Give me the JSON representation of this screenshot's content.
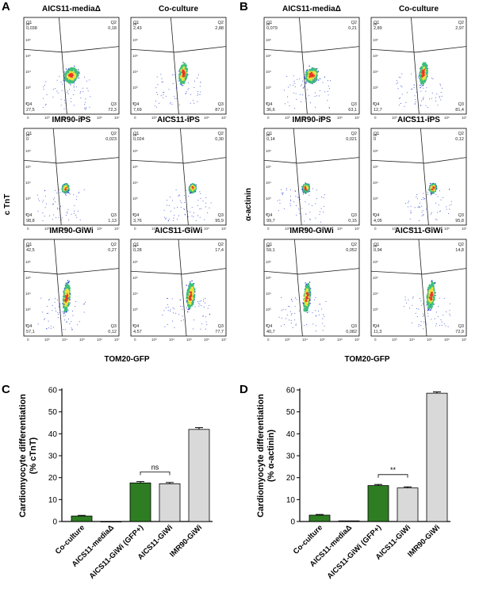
{
  "panel_letters": {
    "A": "A",
    "B": "B",
    "C": "C",
    "D": "D"
  },
  "colors": {
    "gfp_bar": "#2e7d22",
    "grey_bar": "#d9d9d9",
    "bar_edge": "#000000",
    "density_low": "#2b3fd6",
    "density_mid": "#3fbf7a",
    "density_high": "#f0e040",
    "density_peak": "#e8382a"
  },
  "flow": {
    "A": {
      "y_label": "c TnT",
      "x_label": "TOM20-GFP",
      "plots": [
        {
          "title": "AICS11-mediaΔ",
          "q1": "Q1",
          "q1v": "0,038",
          "q2": "Q2",
          "q2v": "0,18",
          "q3": "Q3",
          "q3v": "72,3",
          "q4": "Q4",
          "q4v": "27,5"
        },
        {
          "title": "Co-culture",
          "q1": "Q1",
          "q1v": "2,43",
          "q2": "Q2",
          "q2v": "2,88",
          "q3": "Q3",
          "q3v": "87,0",
          "q4": "Q4",
          "q4v": "7,69"
        },
        {
          "title": "IMR90-iPS",
          "q1": "Q1",
          "q1v": "0",
          "q2": "Q2",
          "q2v": "0,023",
          "q3": "Q3",
          "q3v": "1,13",
          "q4": "Q4",
          "q4v": "98,8"
        },
        {
          "title": "AICS11-iPS",
          "q1": "Q1",
          "q1v": "0,024",
          "q2": "Q2",
          "q2v": "0,30",
          "q3": "Q3",
          "q3v": "95,9",
          "q4": "Q4",
          "q4v": "3,76"
        },
        {
          "title": "IMR90-GiWi",
          "q1": "Q1",
          "q1v": "42,5",
          "q2": "Q2",
          "q2v": "0,27",
          "q3": "Q3",
          "q3v": "0,12",
          "q4": "Q4",
          "q4v": "57,1"
        },
        {
          "title": "AICS11-GiWi",
          "q1": "Q1",
          "q1v": "0,28",
          "q2": "Q2",
          "q2v": "17,4",
          "q3": "Q3",
          "q3v": "77,7",
          "q4": "Q4",
          "q4v": "4,57"
        }
      ]
    },
    "B": {
      "y_label": "α-actinin",
      "x_label": "TOM20-GFP",
      "plots": [
        {
          "title": "AICS11-mediaΔ",
          "q1": "Q1",
          "q1v": "0,079",
          "q2": "Q2",
          "q2v": "0,21",
          "q3": "Q3",
          "q3v": "63,1",
          "q4": "Q4",
          "q4v": "36,6"
        },
        {
          "title": "Co-culture",
          "q1": "Q1",
          "q1v": "2,89",
          "q2": "Q2",
          "q2v": "2,97",
          "q3": "Q3",
          "q3v": "81,4",
          "q4": "Q4",
          "q4v": "12,7"
        },
        {
          "title": "IMR90-iPS",
          "q1": "Q1",
          "q1v": "0,14",
          "q2": "Q2",
          "q2v": "0,021",
          "q3": "Q3",
          "q3v": "0,15",
          "q4": "Q4",
          "q4v": "99,7"
        },
        {
          "title": "AICS11-iPS",
          "q1": "Q1",
          "q1v": "0",
          "q2": "Q2",
          "q2v": "0,12",
          "q3": "Q3",
          "q3v": "95,8",
          "q4": "Q4",
          "q4v": "4,05"
        },
        {
          "title": "IMR90-GiWi",
          "q1": "Q1",
          "q1v": "59,1",
          "q2": "Q2",
          "q2v": "0,052",
          "q3": "Q3",
          "q3v": "0,082",
          "q4": "Q4",
          "q4v": "40,7"
        },
        {
          "title": "AICS11-GiWi",
          "q1": "Q1",
          "q1v": "0,94",
          "q2": "Q2",
          "q2v": "14,8",
          "q3": "Q3",
          "q3v": "72,9",
          "q4": "Q4",
          "q4v": "11,3"
        }
      ]
    },
    "y_ticks": [
      "10⁷",
      "10⁶",
      "10⁵",
      "10⁴",
      "10³",
      "0"
    ],
    "x_ticks": [
      "0",
      "10³",
      "10⁴",
      "10⁵",
      "10⁶",
      "10⁷"
    ]
  },
  "chart_data": [
    {
      "type": "bar",
      "panel": "C",
      "ylabel_line1": "Cardiomyocyte differentiation",
      "ylabel_line2": "(% cTnT)",
      "ylim": [
        0,
        60
      ],
      "yticks": [
        "0",
        "10",
        "20",
        "30",
        "40",
        "50",
        "60"
      ],
      "categories": [
        "Co-culture",
        "AICS11-mediaΔ",
        "AICS11-GiWi (GFP+)",
        "AICS11-GiWi",
        "IMR90-GiWi"
      ],
      "values": [
        2.5,
        0.0,
        17.6,
        17.2,
        42.0
      ],
      "errors": [
        0.3,
        0.0,
        0.6,
        0.6,
        0.8
      ],
      "fills": [
        "gfp",
        "grey",
        "gfp",
        "grey",
        "grey"
      ],
      "annotation": {
        "text": "ns",
        "between": [
          2,
          3
        ]
      }
    },
    {
      "type": "bar",
      "panel": "D",
      "ylabel_line1": "Cardiomyocyte differentiation",
      "ylabel_line2": "(% α-actinin)",
      "ylim": [
        0,
        60
      ],
      "yticks": [
        "0",
        "10",
        "20",
        "30",
        "40",
        "50",
        "60"
      ],
      "categories": [
        "Co-culture",
        "AICS11-mediaΔ",
        "AICS11-GiWi (GFP+)",
        "AICS11-GiWi",
        "IMR90-GiWi"
      ],
      "values": [
        2.9,
        0.3,
        16.4,
        15.3,
        58.5
      ],
      "errors": [
        0.3,
        0.0,
        0.5,
        0.5,
        0.6
      ],
      "fills": [
        "gfp",
        "grey",
        "gfp",
        "grey",
        "grey"
      ],
      "annotation": {
        "text": "**",
        "between": [
          2,
          3
        ]
      }
    }
  ]
}
